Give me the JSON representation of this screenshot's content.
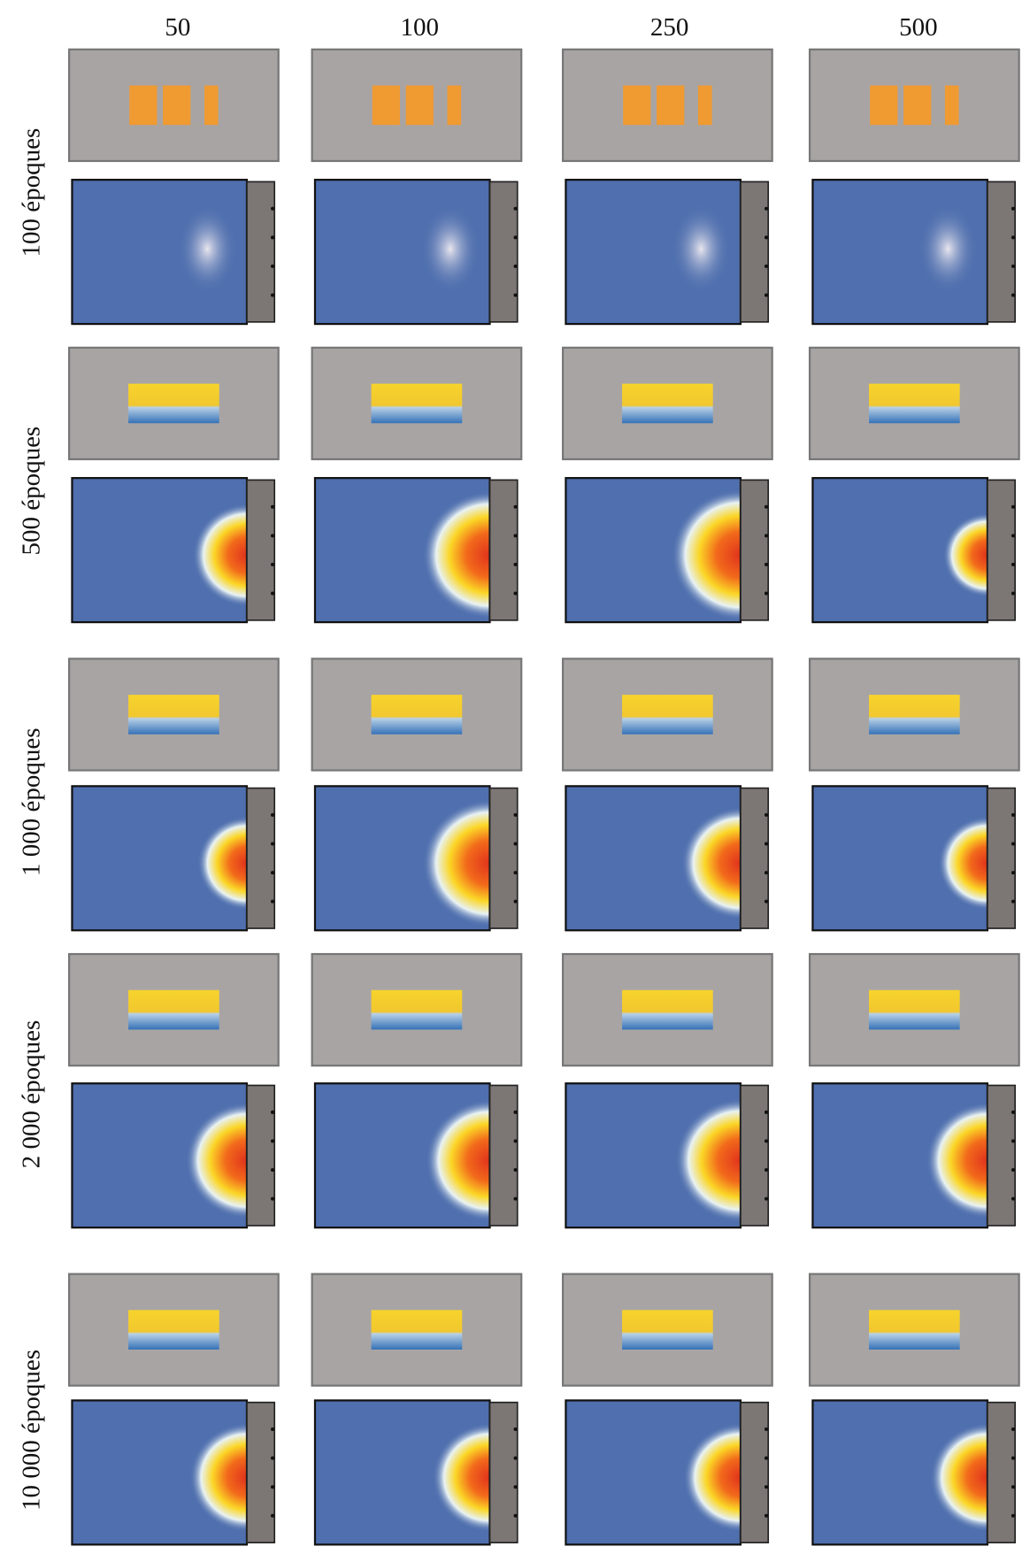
{
  "columns": [
    "50",
    "100",
    "250",
    "500"
  ],
  "rows": [
    "100 époques",
    "500 époques",
    "1 000 époques",
    "2 000 époques",
    "10 000 époques"
  ]
}
